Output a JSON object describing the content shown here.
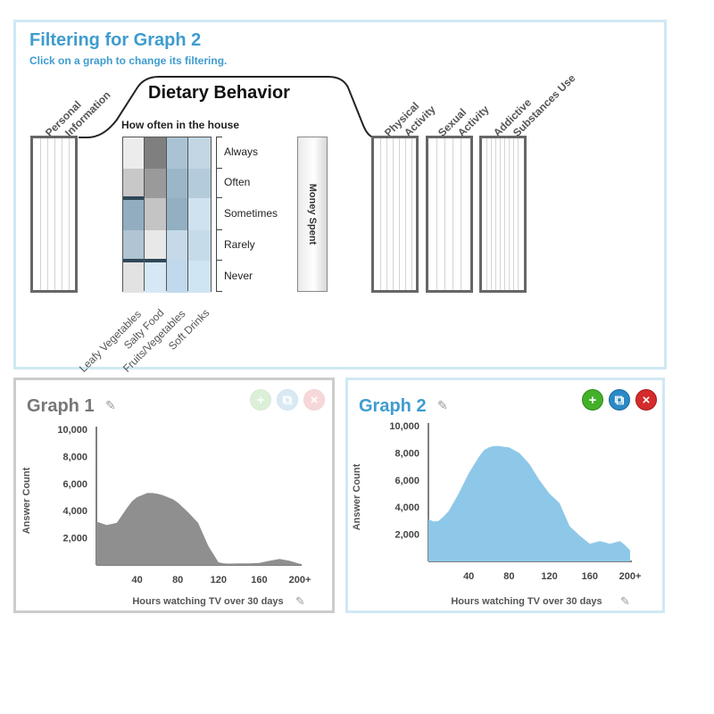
{
  "filter": {
    "title": "Filtering for Graph 2",
    "subtitle": "Click on a graph to change its filtering.",
    "categories": {
      "personal": [
        "Personal",
        "Information"
      ],
      "physical": [
        "Physical",
        "Activity"
      ],
      "sexual": [
        "Sexual",
        "Activity"
      ],
      "addictive": [
        "Addictive",
        "Substances Use"
      ]
    },
    "dietary": {
      "header": "Dietary Behavior",
      "sublabel": "How often in the house",
      "frequency_levels": [
        "Always",
        "Often",
        "Sometimes",
        "Rarely",
        "Never"
      ],
      "food_columns": [
        "Leafy Vegetables",
        "Salty Food",
        "Fruits/Vegetables",
        "Soft Drinks"
      ],
      "money_label": "Money Spent"
    }
  },
  "graph1": {
    "title": "Graph 1",
    "buttons": {
      "add": "+",
      "copy": "⧉",
      "close": "×"
    },
    "xlabel": "Hours watching TV over 30 days",
    "ylabel": "Answer Count"
  },
  "graph2": {
    "title": "Graph 2",
    "buttons": {
      "add": "+",
      "copy": "⧉",
      "close": "×"
    },
    "xlabel": "Hours watching TV over 30 days",
    "ylabel": "Answer Count"
  },
  "icons": {
    "edit": "pencil-icon",
    "add": "plus-icon",
    "copy": "duplicate-icon",
    "close": "close-icon"
  },
  "colors": {
    "accent": "#3f9ccf",
    "graph1_fill": "#8f8f8f",
    "graph2_fill": "#8ec8e8",
    "add": "#43b02a",
    "copy": "#2b89c6",
    "close": "#d42b2b"
  },
  "chart_data": [
    {
      "type": "area",
      "title": "Graph 1",
      "xlabel": "Hours watching TV over 30 days",
      "ylabel": "Answer Count",
      "xticks": [
        "40",
        "80",
        "120",
        "160",
        "200+"
      ],
      "yticks": [
        "2,000",
        "4,000",
        "6,000",
        "8,000",
        "10,000"
      ],
      "xlim": [
        0,
        200
      ],
      "ylim": [
        0,
        10000
      ],
      "x": [
        0,
        10,
        20,
        30,
        35,
        40,
        45,
        50,
        55,
        60,
        65,
        70,
        75,
        80,
        90,
        100,
        110,
        120,
        125,
        130,
        140,
        150,
        160,
        170,
        180,
        190,
        200
      ],
      "y": [
        3200,
        2950,
        3100,
        4200,
        4700,
        5000,
        5150,
        5300,
        5300,
        5250,
        5150,
        5000,
        4850,
        4600,
        3900,
        3100,
        1400,
        200,
        120,
        100,
        120,
        120,
        150,
        300,
        450,
        300,
        80
      ]
    },
    {
      "type": "area",
      "title": "Graph 2",
      "xlabel": "Hours watching TV over 30 days",
      "ylabel": "Answer Count",
      "xticks": [
        "40",
        "80",
        "120",
        "160",
        "200+"
      ],
      "yticks": [
        "2,000",
        "4,000",
        "6,000",
        "8,000",
        "10,000"
      ],
      "xlim": [
        0,
        200
      ],
      "ylim": [
        0,
        10000
      ],
      "x": [
        0,
        5,
        10,
        15,
        20,
        30,
        40,
        50,
        55,
        60,
        65,
        70,
        75,
        80,
        90,
        100,
        110,
        120,
        130,
        140,
        150,
        160,
        170,
        180,
        190,
        195,
        200
      ],
      "y": [
        3100,
        2950,
        2980,
        3300,
        3700,
        5000,
        6500,
        7700,
        8200,
        8400,
        8500,
        8500,
        8450,
        8400,
        8000,
        7200,
        6000,
        5000,
        4300,
        2600,
        1900,
        1300,
        1500,
        1300,
        1500,
        1200,
        800
      ]
    }
  ]
}
